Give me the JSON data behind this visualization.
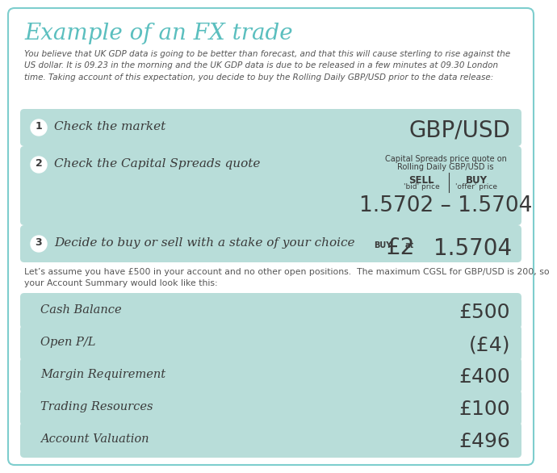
{
  "title": "Example of an FX trade",
  "intro_text": "You believe that UK GDP data is going to be better than forecast, and that this will cause sterling to rise against the\nUS dollar. It is 09.23 in the morning and the UK GDP data is due to be released in a few minutes at 09.30 London\ntime. Taking account of this expectation, you decide to buy the Rolling Daily GBP/USD prior to the data release:",
  "bg_color": "#ffffff",
  "outer_border_color": "#7ecece",
  "box_color": "#b8ddd9",
  "title_color": "#5bbfbf",
  "text_color": "#555555",
  "dark_text": "#3a3a3a",
  "step_rows": [
    {
      "number": "1",
      "label": "Check the market",
      "right_text": "GBP/USD"
    },
    {
      "number": "2",
      "label": "Check the Capital Spreads quote",
      "quote_header_line1": "Capital Spreads price quote on",
      "quote_header_line2": "Rolling Daily GBP/USD is",
      "sell_label": "SELL",
      "sell_sub": "'bid' price",
      "buy_label": "BUY",
      "buy_sub": "'offer' price",
      "price_text": "1.5702 – 1.5704"
    },
    {
      "number": "3",
      "label": "Decide to buy or sell with a stake of your choice",
      "buy_prefix": "BUY",
      "stake_amount": "£2",
      "at_text": "at",
      "stake_price": "1.5704"
    }
  ],
  "summary_intro": "Let’s assume you have £500 in your account and no other open positions.  The maximum CGSL for GBP/USD is 200, so\nyour Account Summary would look like this:",
  "summary_rows": [
    {
      "label": "Cash Balance",
      "value": "£500"
    },
    {
      "label": "Open P/L",
      "value": "(£4)"
    },
    {
      "label": "Margin Requirement",
      "value": "£400"
    },
    {
      "label": "Trading Resources",
      "value": "£100"
    },
    {
      "label": "Account Valuation",
      "value": "£496"
    }
  ]
}
